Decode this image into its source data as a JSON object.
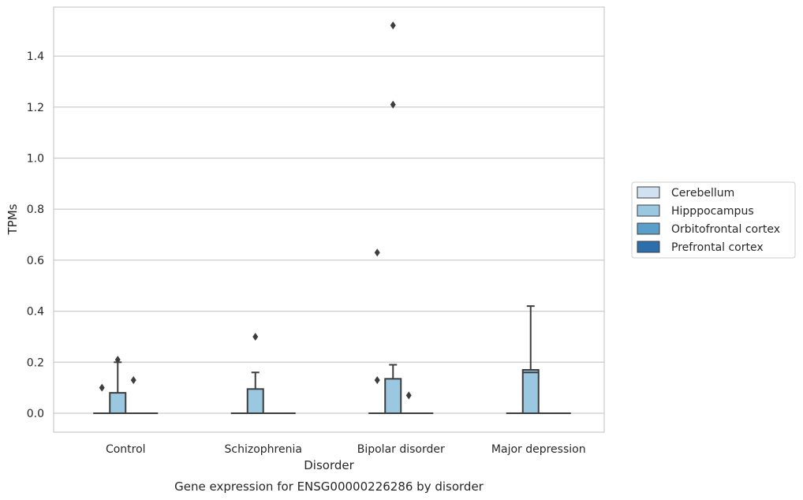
{
  "chart_data": {
    "type": "box",
    "caption": "Gene expression for ENSG00000226286 by disorder",
    "xlabel": "Disorder",
    "ylabel": "TPMs",
    "ylim": [
      -0.075,
      1.6
    ],
    "yticks": [
      0.0,
      0.2,
      0.4,
      0.6,
      0.8,
      1.0,
      1.2,
      1.4
    ],
    "ytick_labels": [
      "0.0",
      "0.2",
      "0.4",
      "0.6",
      "0.8",
      "1.0",
      "1.2",
      "1.4"
    ],
    "grid": "horizontal",
    "legend_position": "right",
    "categories": [
      "Control",
      "Schizophrenia",
      "Bipolar disorder",
      "Major depression"
    ],
    "series": [
      {
        "name": "Cerebellum",
        "color": "#d0e1f2",
        "boxes": [
          {
            "category": "Control",
            "whislo": 0,
            "q1": 0,
            "med": 0,
            "q3": 0,
            "whishi": 0,
            "fliers": [
              0.1
            ]
          },
          {
            "category": "Schizophrenia",
            "whislo": 0,
            "q1": 0,
            "med": 0,
            "q3": 0,
            "whishi": 0,
            "fliers": []
          },
          {
            "category": "Bipolar disorder",
            "whislo": 0,
            "q1": 0,
            "med": 0,
            "q3": 0,
            "whishi": 0,
            "fliers": [
              0.13,
              0.63
            ]
          },
          {
            "category": "Major depression",
            "whislo": 0,
            "q1": 0,
            "med": 0,
            "q3": 0,
            "whishi": 0,
            "fliers": []
          }
        ]
      },
      {
        "name": "Hipppocampus",
        "color": "#9ac8e0",
        "boxes": [
          {
            "category": "Control",
            "whislo": 0,
            "q1": 0,
            "med": 0,
            "q3": 0.08,
            "whishi": 0.2,
            "fliers": [
              0.21
            ]
          },
          {
            "category": "Schizophrenia",
            "whislo": 0,
            "q1": 0,
            "med": 0,
            "q3": 0.095,
            "whishi": 0.16,
            "fliers": [
              0.3
            ]
          },
          {
            "category": "Bipolar disorder",
            "whislo": 0,
            "q1": 0,
            "med": 0,
            "q3": 0.135,
            "whishi": 0.19,
            "fliers": [
              1.21,
              1.52
            ]
          },
          {
            "category": "Major depression",
            "whislo": 0,
            "q1": 0,
            "med": 0.16,
            "q3": 0.17,
            "whishi": 0.42,
            "fliers": []
          }
        ]
      },
      {
        "name": "Orbitofrontal cortex",
        "color": "#5a9ec9",
        "boxes": [
          {
            "category": "Control",
            "whislo": 0,
            "q1": 0,
            "med": 0,
            "q3": 0,
            "whishi": 0,
            "fliers": [
              0.13
            ]
          },
          {
            "category": "Schizophrenia",
            "whislo": 0,
            "q1": 0,
            "med": 0,
            "q3": 0,
            "whishi": 0,
            "fliers": []
          },
          {
            "category": "Bipolar disorder",
            "whislo": 0,
            "q1": 0,
            "med": 0,
            "q3": 0,
            "whishi": 0,
            "fliers": [
              0.07
            ]
          },
          {
            "category": "Major depression",
            "whislo": 0,
            "q1": 0,
            "med": 0,
            "q3": 0,
            "whishi": 0,
            "fliers": []
          }
        ]
      },
      {
        "name": "Prefrontal cortex",
        "color": "#2d6fad",
        "boxes": [
          {
            "category": "Control",
            "whislo": 0,
            "q1": 0,
            "med": 0,
            "q3": 0,
            "whishi": 0,
            "fliers": []
          },
          {
            "category": "Schizophrenia",
            "whislo": 0,
            "q1": 0,
            "med": 0,
            "q3": 0,
            "whishi": 0,
            "fliers": []
          },
          {
            "category": "Bipolar disorder",
            "whislo": 0,
            "q1": 0,
            "med": 0,
            "q3": 0,
            "whishi": 0,
            "fliers": []
          },
          {
            "category": "Major depression",
            "whislo": 0,
            "q1": 0,
            "med": 0,
            "q3": 0,
            "whishi": 0,
            "fliers": []
          }
        ]
      }
    ]
  }
}
